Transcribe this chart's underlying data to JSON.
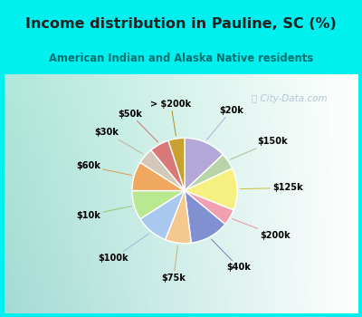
{
  "title": "Income distribution in Pauline, SC (%)",
  "subtitle": "American Indian and Alaska Native residents",
  "watermark": "City-Data.com",
  "labels": [
    "$20k",
    "$150k",
    "$125k",
    "$200k",
    "$40k",
    "$75k",
    "$100k",
    "$10k",
    "$60k",
    "$30k",
    "$50k",
    "> $200k"
  ],
  "sizes": [
    13,
    5,
    13,
    5,
    12,
    8,
    10,
    9,
    9,
    5,
    6,
    5
  ],
  "colors": [
    "#b3a8d8",
    "#b8d4a8",
    "#f5f080",
    "#f0a0b0",
    "#8090d0",
    "#f5c890",
    "#a8c8f0",
    "#b8e890",
    "#f0a860",
    "#d4c8b8",
    "#d87878",
    "#c8a030"
  ],
  "line_colors": [
    "#b3a8d8",
    "#a0c090",
    "#c8c040",
    "#e890a0",
    "#7080c0",
    "#d4a870",
    "#a0b8e0",
    "#90c870",
    "#e09850",
    "#c0b098",
    "#d07070",
    "#a89020"
  ],
  "cyan": "#00EFEF",
  "title_color": "#222222",
  "subtitle_color": "#007070",
  "watermark_color": "#aabbcc"
}
